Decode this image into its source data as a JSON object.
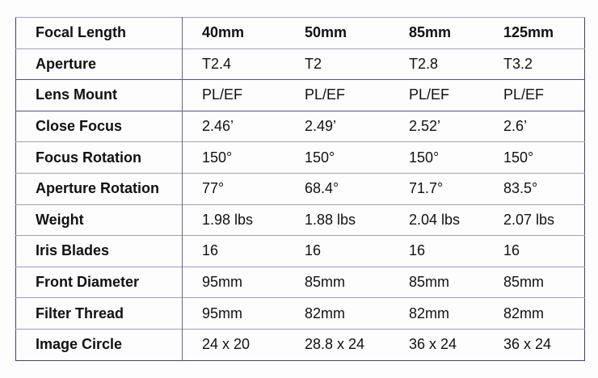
{
  "table": {
    "header": {
      "label": "Focal Length",
      "values": [
        "40mm",
        "50mm",
        "85mm",
        "125mm"
      ]
    },
    "rows": [
      {
        "label": "Aperture",
        "values": [
          "T2.4",
          "T2",
          "T2.8",
          "T3.2"
        ]
      },
      {
        "label": "Lens Mount",
        "values": [
          "PL/EF",
          "PL/EF",
          "PL/EF",
          "PL/EF"
        ]
      },
      {
        "label": "Close Focus",
        "values": [
          "2.46’",
          "2.49’",
          "2.52’",
          "2.6’"
        ]
      },
      {
        "label": "Focus Rotation",
        "values": [
          "150°",
          "150°",
          "150°",
          "150°"
        ]
      },
      {
        "label": "Aperture Rotation",
        "values": [
          "77°",
          "68.4°",
          "71.7°",
          "83.5°"
        ]
      },
      {
        "label": "Weight",
        "values": [
          "1.98 lbs",
          "1.88 lbs",
          "2.04 lbs",
          "2.07 lbs"
        ]
      },
      {
        "label": "Iris Blades",
        "values": [
          "16",
          "16",
          "16",
          "16"
        ]
      },
      {
        "label": "Front Diameter",
        "values": [
          "95mm",
          "85mm",
          "85mm",
          "85mm"
        ]
      },
      {
        "label": "Filter Thread",
        "values": [
          "95mm",
          "82mm",
          "82mm",
          "82mm"
        ]
      },
      {
        "label": "Image Circle",
        "values": [
          "24 x 20",
          "28.8 x 24",
          "36 x 24",
          "36 x 24"
        ]
      }
    ]
  }
}
